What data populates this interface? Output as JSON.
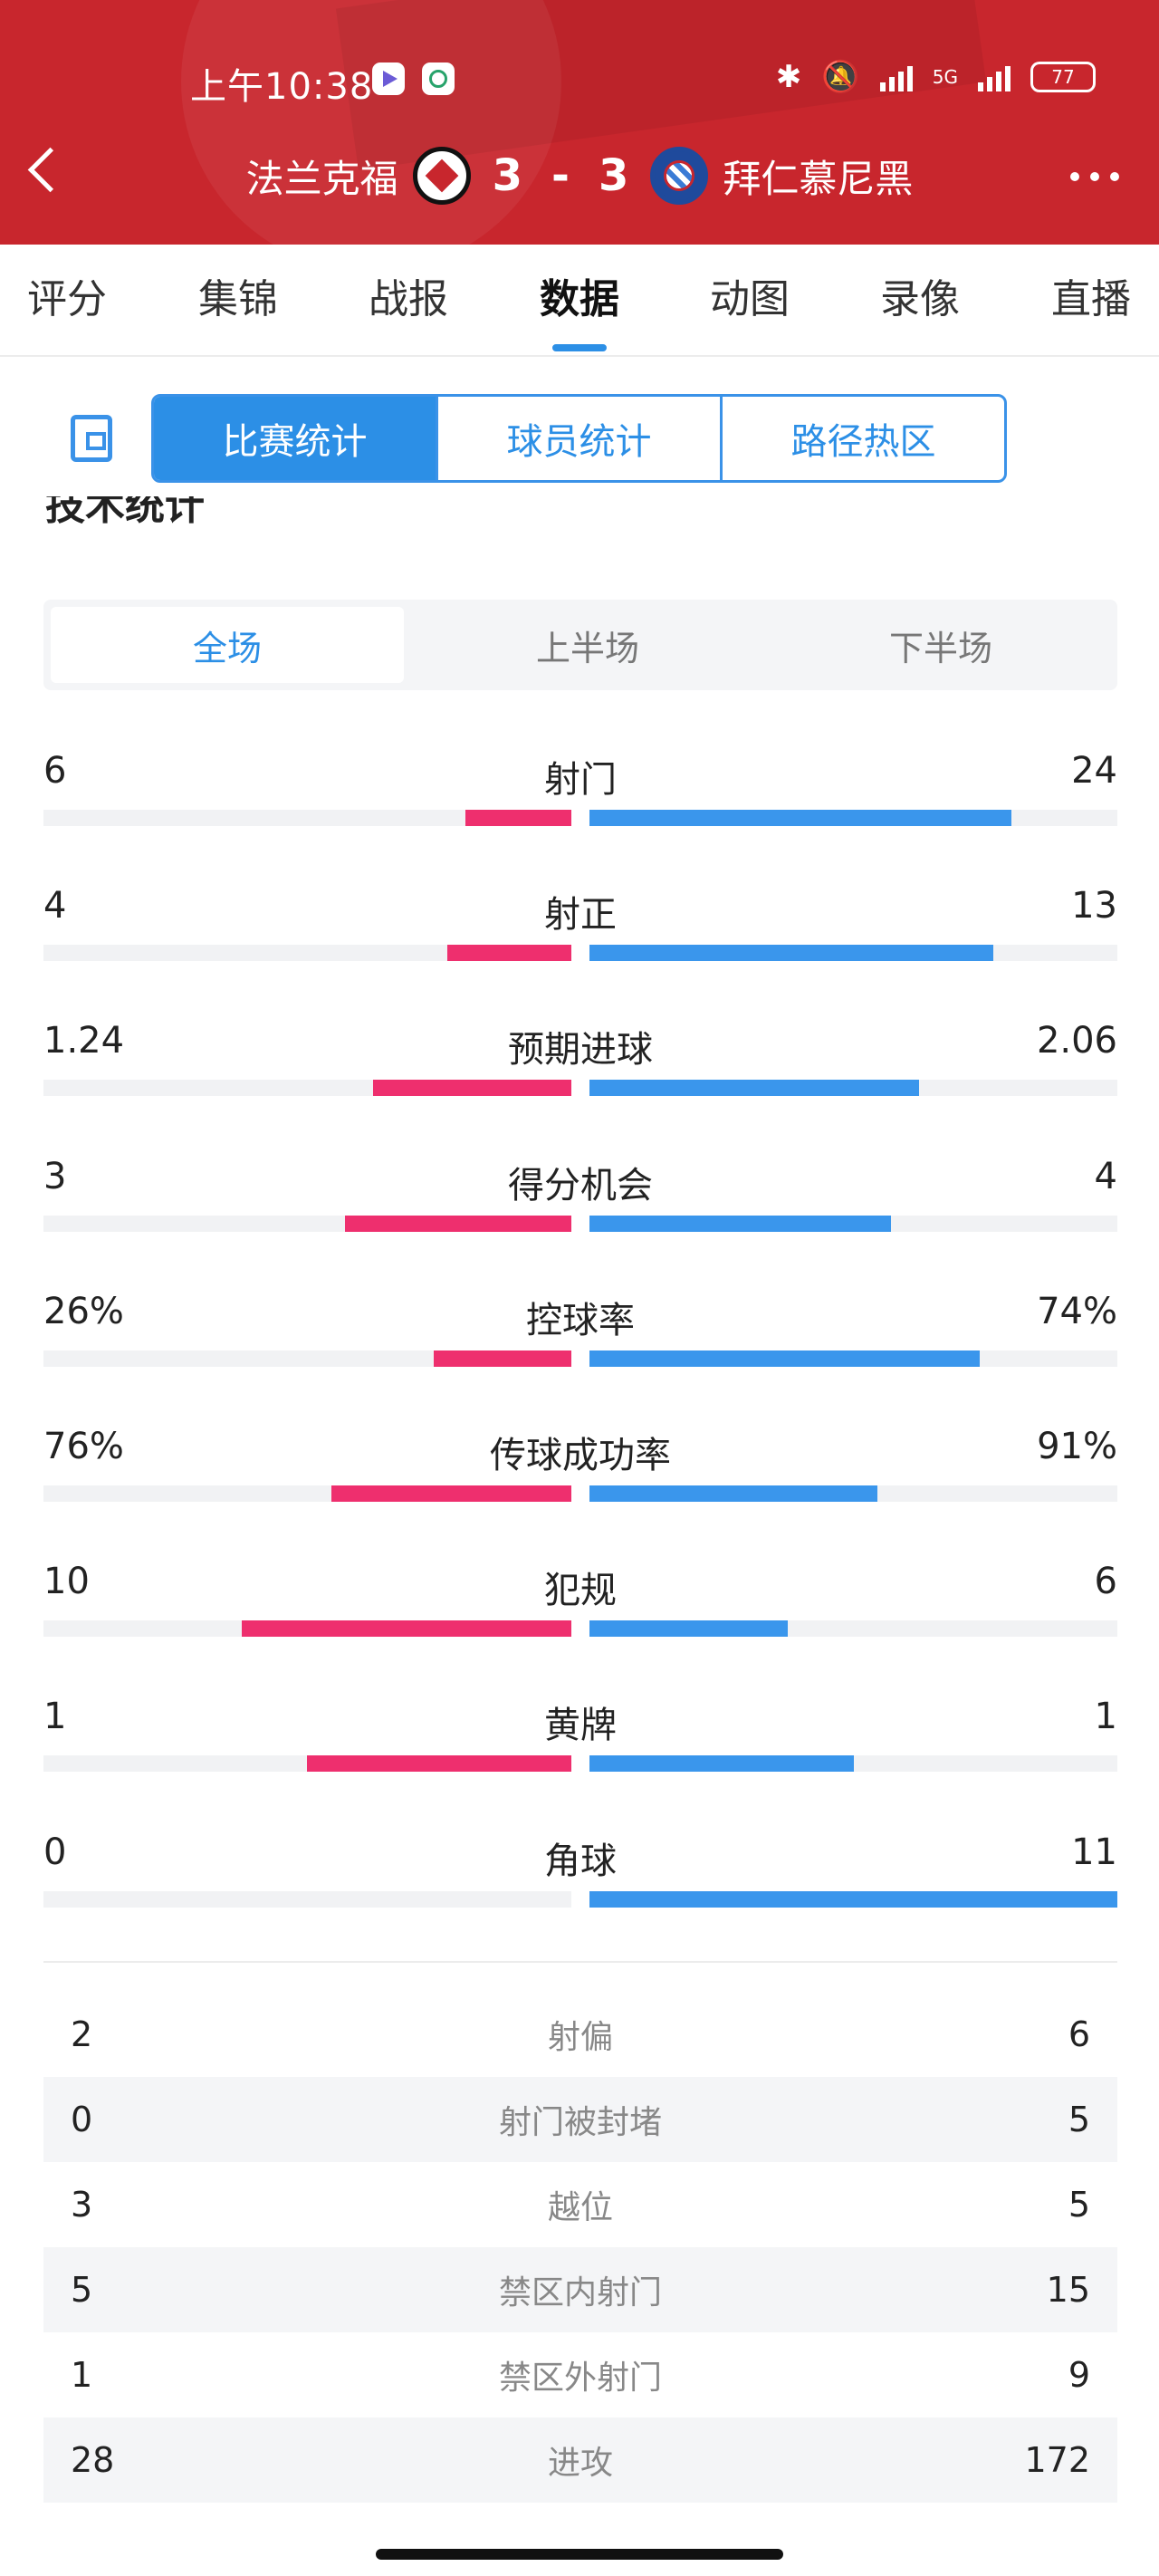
{
  "status_bar": {
    "time": "上午10:38",
    "network": "5G",
    "battery": "77"
  },
  "match": {
    "home": "法兰克福",
    "away": "拜仁慕尼黑",
    "score_home": "3",
    "score_sep": "-",
    "score_away": "3"
  },
  "tabs": [
    "评分",
    "集锦",
    "战报",
    "数据",
    "动图",
    "录像",
    "直播"
  ],
  "active_tab": "数据",
  "segments": [
    "比赛统计",
    "球员统计",
    "路径热区"
  ],
  "active_segment": "比赛统计",
  "section_title": "技术统计",
  "periods": [
    "全场",
    "上半场",
    "下半场"
  ],
  "active_period": "全场",
  "colors": {
    "home": "#ee2f6e",
    "away": "#3a96ec",
    "header": "#c8262d"
  },
  "bar_stats": [
    {
      "name": "射门",
      "left": "6",
      "right": "24",
      "left_ratio": 0.2,
      "right_ratio": 0.8
    },
    {
      "name": "射正",
      "left": "4",
      "right": "13",
      "left_ratio": 0.235,
      "right_ratio": 0.765
    },
    {
      "name": "预期进球",
      "left": "1.24",
      "right": "2.06",
      "left_ratio": 0.376,
      "right_ratio": 0.624
    },
    {
      "name": "得分机会",
      "left": "3",
      "right": "4",
      "left_ratio": 0.429,
      "right_ratio": 0.571
    },
    {
      "name": "控球率",
      "left": "26%",
      "right": "74%",
      "left_ratio": 0.26,
      "right_ratio": 0.74
    },
    {
      "name": "传球成功率",
      "left": "76%",
      "right": "91%",
      "left_ratio": 0.455,
      "right_ratio": 0.545
    },
    {
      "name": "犯规",
      "left": "10",
      "right": "6",
      "left_ratio": 0.625,
      "right_ratio": 0.375
    },
    {
      "name": "黄牌",
      "left": "1",
      "right": "1",
      "left_ratio": 0.5,
      "right_ratio": 0.5
    },
    {
      "name": "角球",
      "left": "0",
      "right": "11",
      "left_ratio": 0.0,
      "right_ratio": 1.0
    }
  ],
  "simple_stats": [
    {
      "name": "射偏",
      "left": "2",
      "right": "6"
    },
    {
      "name": "射门被封堵",
      "left": "0",
      "right": "5"
    },
    {
      "name": "越位",
      "left": "3",
      "right": "5"
    },
    {
      "name": "禁区内射门",
      "left": "5",
      "right": "15"
    },
    {
      "name": "禁区外射门",
      "left": "1",
      "right": "9"
    },
    {
      "name": "进攻",
      "left": "28",
      "right": "172"
    }
  ]
}
